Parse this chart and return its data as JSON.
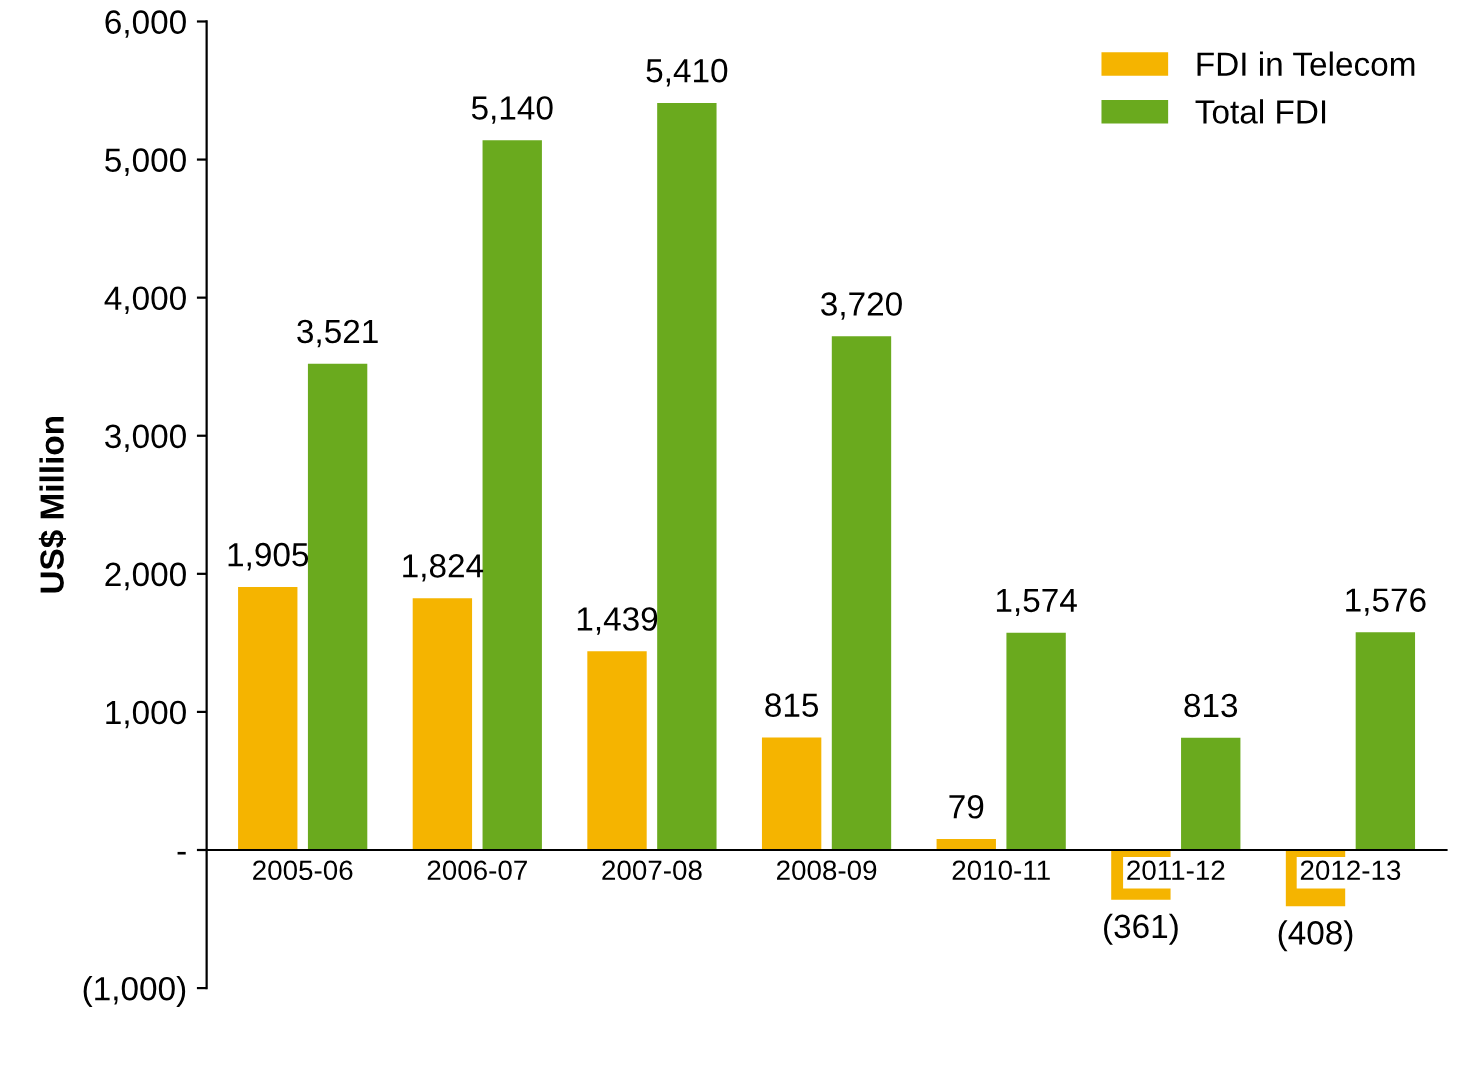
{
  "chart_data": {
    "type": "bar",
    "ylabel": "US$ Million",
    "categories": [
      "2005-06",
      "2006-07",
      "2007-08",
      "2008-09",
      "2010-11",
      "2011-12",
      "2012-13"
    ],
    "series": [
      {
        "name": "FDI in Telecom",
        "color": "#f5b400",
        "values": [
          1905,
          1824,
          1439,
          815,
          79,
          -361,
          -408
        ],
        "value_labels": [
          "1,905",
          "1,824",
          "1,439",
          "815",
          "79",
          "(361)",
          "(408)"
        ]
      },
      {
        "name": "Total FDI",
        "color": "#6aaa1e",
        "values": [
          3521,
          5140,
          5410,
          3720,
          1574,
          813,
          1576
        ],
        "value_labels": [
          "3,521",
          "5,140",
          "5,410",
          "3,720",
          "1,574",
          "813",
          "1,576"
        ]
      }
    ],
    "ylim": [
      -1000,
      6000
    ],
    "yticks": [
      {
        "value": -1000,
        "label": "(1,000)"
      },
      {
        "value": 0,
        "label": "-"
      },
      {
        "value": 1000,
        "label": "1,000"
      },
      {
        "value": 2000,
        "label": "2,000"
      },
      {
        "value": 3000,
        "label": "3,000"
      },
      {
        "value": 4000,
        "label": "4,000"
      },
      {
        "value": 5000,
        "label": "5,000"
      },
      {
        "value": 6000,
        "label": "6,000"
      }
    ],
    "grid": false,
    "legend": "top right"
  }
}
